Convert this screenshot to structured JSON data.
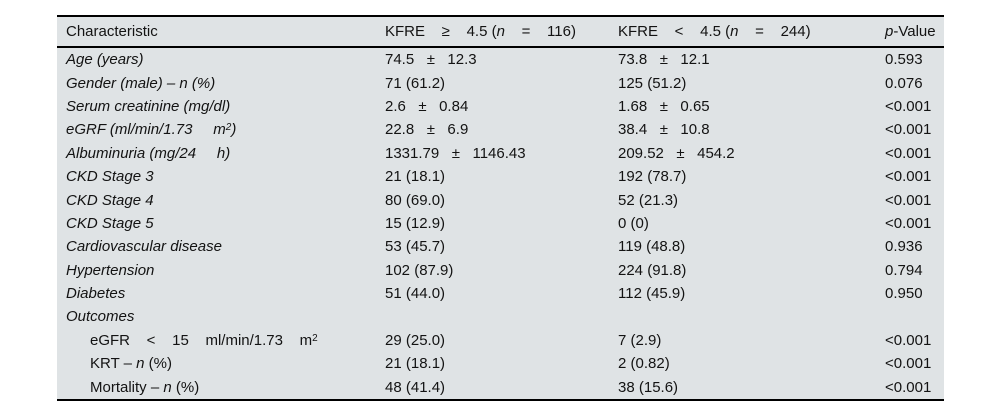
{
  "table": {
    "background_color": "#dfe3e5",
    "rule_color": "#000000",
    "columns": [
      {
        "key": "characteristic",
        "segments": [
          {
            "t": "Characteristic"
          }
        ]
      },
      {
        "key": "kfre-ge-4-5",
        "segments": [
          {
            "t": "KFRE    ≥    4.5 ("
          },
          {
            "t": "n",
            "i": true
          },
          {
            "t": "    =    116)"
          }
        ]
      },
      {
        "key": "kfre-lt-4-5",
        "segments": [
          {
            "t": "KFRE    <    4.5 ("
          },
          {
            "t": "n",
            "i": true
          },
          {
            "t": "    =    244)"
          }
        ]
      },
      {
        "key": "p-value",
        "segments": [
          {
            "t": "p",
            "i": true
          },
          {
            "t": "-Value"
          }
        ]
      }
    ],
    "rows": [
      {
        "key": "age",
        "label": [
          {
            "t": "Age (years)",
            "i": true
          }
        ],
        "values": [
          "74.5   ±   12.3",
          "73.8   ±   12.1",
          "0.593"
        ]
      },
      {
        "key": "gender",
        "label": [
          {
            "t": "Gender (male) – n (%)",
            "i": true
          }
        ],
        "values": [
          "71 (61.2)",
          "125 (51.2)",
          "0.076"
        ]
      },
      {
        "key": "serum-creatinine",
        "label": [
          {
            "t": "Serum creatinine (mg/dl)",
            "i": true
          }
        ],
        "values": [
          "2.6   ±   0.84",
          "1.68   ±   0.65",
          "<0.001"
        ]
      },
      {
        "key": "egrf",
        "label": [
          {
            "t": "eGRF (ml/min/1.73     m",
            "i": true
          },
          {
            "t": "2",
            "i": true,
            "sup": true
          },
          {
            "t": ")",
            "i": true
          }
        ],
        "values": [
          "22.8   ±   6.9",
          "38.4   ±   10.8",
          "<0.001"
        ]
      },
      {
        "key": "albuminuria",
        "label": [
          {
            "t": "Albuminuria (mg/24     h)",
            "i": true
          }
        ],
        "values": [
          "1331.79   ±   1146.43",
          "209.52   ±   454.2",
          "<0.001"
        ]
      },
      {
        "key": "ckd-stage-3",
        "label": [
          {
            "t": "CKD Stage 3",
            "i": true
          }
        ],
        "values": [
          "21 (18.1)",
          "192 (78.7)",
          "<0.001"
        ]
      },
      {
        "key": "ckd-stage-4",
        "label": [
          {
            "t": "CKD Stage 4",
            "i": true
          }
        ],
        "values": [
          "80 (69.0)",
          "52 (21.3)",
          "<0.001"
        ]
      },
      {
        "key": "ckd-stage-5",
        "label": [
          {
            "t": "CKD Stage 5",
            "i": true
          }
        ],
        "values": [
          "15 (12.9)",
          "0 (0)",
          "<0.001"
        ]
      },
      {
        "key": "cardiovascular-disease",
        "label": [
          {
            "t": "Cardiovascular disease",
            "i": true
          }
        ],
        "values": [
          "53 (45.7)",
          "119 (48.8)",
          "0.936"
        ]
      },
      {
        "key": "hypertension",
        "label": [
          {
            "t": "Hypertension",
            "i": true
          }
        ],
        "values": [
          "102 (87.9)",
          "224 (91.8)",
          "0.794"
        ]
      },
      {
        "key": "diabetes",
        "label": [
          {
            "t": "Diabetes",
            "i": true
          }
        ],
        "values": [
          "51 (44.0)",
          "112 (45.9)",
          "0.950"
        ]
      },
      {
        "key": "outcomes",
        "section": true,
        "label": [
          {
            "t": "Outcomes",
            "i": true
          }
        ],
        "values": [
          "",
          "",
          ""
        ]
      },
      {
        "key": "egfr-lt-15",
        "indent": true,
        "label": [
          {
            "t": "eGFR    <    15    ml/min/1.73    m"
          },
          {
            "t": "2",
            "sup": true
          }
        ],
        "values": [
          "29 (25.0)",
          "7 (2.9)",
          "<0.001"
        ]
      },
      {
        "key": "krt",
        "indent": true,
        "label": [
          {
            "t": "KRT – "
          },
          {
            "t": "n",
            "i": true
          },
          {
            "t": " (%)"
          }
        ],
        "values": [
          "21 (18.1)",
          "2 (0.82)",
          "<0.001"
        ]
      },
      {
        "key": "mortality",
        "indent": true,
        "label": [
          {
            "t": "Mortality – "
          },
          {
            "t": "n",
            "i": true
          },
          {
            "t": " (%)"
          }
        ],
        "values": [
          "48 (41.4)",
          "38 (15.6)",
          "<0.001"
        ]
      }
    ]
  }
}
